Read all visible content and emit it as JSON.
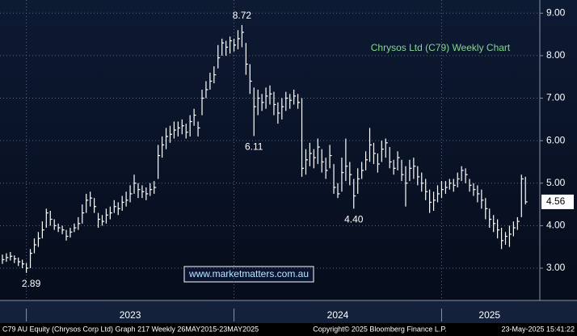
{
  "chart_data": {
    "type": "ohlc",
    "title": "Chrysos Ltd (C79) Weekly Chart",
    "watermark": "www.marketmatters.com.au",
    "footer_left": "C79 AU Equity (Chrysos Corp Ltd) Graph 217  Weekly 26MAY2015-23MAY2025",
    "footer_center": "Copyright© 2025 Bloomberg Finance L.P.",
    "footer_right": "23-May-2025 15:41:22",
    "color": "#ffffff",
    "grid": true,
    "xlim": [
      -0.6,
      134.6
    ],
    "ylim": [
      2.24,
      9.31
    ],
    "xdividers": [
      6,
      58,
      110
    ],
    "xticks": [
      {
        "value": 32,
        "label": "2023"
      },
      {
        "value": 84,
        "label": "2024"
      },
      {
        "value": 122,
        "label": "2025"
      }
    ],
    "yticks": [
      {
        "value": 3,
        "label": "3.00"
      },
      {
        "value": 4,
        "label": "4.00"
      },
      {
        "value": 5,
        "label": "5.00"
      },
      {
        "value": 6,
        "label": "6.00"
      },
      {
        "value": 7,
        "label": "7.00"
      },
      {
        "value": 8,
        "label": "8.00"
      },
      {
        "value": 9,
        "label": "9.00"
      }
    ],
    "annotations": [
      {
        "x": 60,
        "value": 8.72,
        "label": "8.72"
      },
      {
        "x": 63,
        "value": 6.11,
        "label": "6.11"
      },
      {
        "x": 88,
        "value": 4.4,
        "label": "4.40"
      },
      {
        "x": 6,
        "value": 2.89,
        "label": "2.89"
      }
    ],
    "high": [
      3.32,
      3.35,
      3.38,
      3.3,
      3.25,
      3.2,
      3.12,
      3.45,
      3.7,
      3.85,
      4.1,
      4.4,
      4.35,
      4.15,
      4.05,
      4.0,
      3.9,
      3.95,
      4.05,
      4.2,
      4.5,
      4.75,
      4.8,
      4.65,
      4.3,
      4.25,
      4.4,
      4.45,
      4.6,
      4.55,
      4.7,
      4.8,
      4.95,
      5.2,
      5.0,
      4.95,
      4.9,
      5.0,
      5.05,
      5.9,
      6.1,
      6.3,
      6.35,
      6.45,
      6.45,
      6.5,
      6.4,
      6.6,
      6.75,
      6.45,
      7.2,
      7.4,
      7.6,
      7.75,
      8.25,
      8.4,
      8.35,
      8.45,
      8.4,
      8.6,
      8.72,
      8.3,
      7.8,
      7.25,
      7.2,
      7.1,
      7.25,
      7.3,
      7.15,
      6.9,
      7.0,
      7.15,
      7.1,
      7.2,
      7.1,
      7.0,
      5.8,
      5.95,
      5.8,
      6.05,
      5.8,
      5.6,
      5.9,
      5.45,
      5.0,
      5.6,
      6.05,
      5.5,
      5.1,
      5.35,
      5.5,
      5.75,
      6.3,
      5.95,
      5.7,
      6.0,
      6.05,
      5.85,
      5.55,
      5.75,
      5.55,
      5.4,
      5.55,
      5.6,
      5.4,
      5.25,
      5.1,
      4.85,
      4.8,
      4.95,
      5.05,
      5.05,
      5.1,
      5.1,
      5.25,
      5.4,
      5.35,
      5.1,
      5.0,
      4.95,
      4.85,
      4.65,
      4.4,
      4.25,
      4.15,
      3.95,
      3.85,
      4.0,
      4.1,
      4.2,
      5.2,
      5.15
    ],
    "low": [
      3.1,
      3.15,
      3.18,
      3.12,
      3.05,
      3.0,
      2.89,
      3.0,
      3.35,
      3.5,
      3.7,
      3.95,
      4.0,
      3.9,
      3.85,
      3.8,
      3.65,
      3.72,
      3.85,
      3.9,
      4.05,
      4.3,
      4.45,
      4.3,
      3.95,
      4.0,
      4.05,
      4.15,
      4.3,
      4.25,
      4.35,
      4.45,
      4.55,
      4.75,
      4.65,
      4.65,
      4.6,
      4.7,
      4.75,
      5.1,
      5.6,
      5.8,
      5.95,
      6.05,
      6.1,
      6.15,
      6.05,
      6.1,
      6.35,
      6.1,
      6.6,
      7.0,
      7.2,
      7.35,
      7.7,
      8.0,
      8.0,
      8.05,
      8.1,
      8.15,
      8.2,
      7.55,
      7.1,
      6.11,
      6.6,
      6.7,
      6.75,
      6.85,
      6.6,
      6.4,
      6.5,
      6.7,
      6.75,
      6.85,
      6.75,
      5.15,
      5.2,
      5.4,
      5.35,
      5.45,
      5.25,
      5.1,
      5.35,
      4.75,
      4.65,
      4.8,
      5.05,
      4.95,
      4.4,
      4.75,
      5.1,
      5.3,
      5.5,
      5.45,
      5.25,
      5.5,
      5.6,
      5.35,
      5.2,
      5.3,
      5.05,
      4.45,
      5.05,
      5.1,
      4.95,
      4.8,
      4.6,
      4.3,
      4.35,
      4.55,
      4.65,
      4.75,
      4.85,
      4.8,
      4.9,
      5.05,
      5.0,
      4.8,
      4.7,
      4.55,
      4.4,
      4.15,
      3.95,
      3.85,
      3.7,
      3.45,
      3.55,
      3.5,
      3.75,
      3.9,
      4.2,
      4.5
    ],
    "close": [
      3.2,
      3.25,
      3.28,
      3.22,
      3.15,
      3.1,
      3.0,
      3.35,
      3.55,
      3.7,
      3.9,
      4.3,
      4.15,
      4.0,
      3.95,
      3.9,
      3.75,
      3.85,
      3.95,
      4.05,
      4.3,
      4.6,
      4.65,
      4.45,
      4.15,
      4.1,
      4.25,
      4.3,
      4.45,
      4.4,
      4.55,
      4.6,
      4.75,
      5.0,
      4.85,
      4.8,
      4.75,
      4.85,
      4.9,
      5.65,
      5.9,
      6.1,
      6.15,
      6.25,
      6.3,
      6.35,
      6.2,
      6.45,
      6.6,
      6.3,
      7.0,
      7.2,
      7.4,
      7.55,
      7.95,
      8.3,
      8.2,
      8.35,
      8.25,
      8.4,
      8.55,
      7.8,
      7.4,
      6.8,
      7.0,
      6.9,
      7.05,
      7.1,
      6.85,
      6.65,
      6.8,
      7.0,
      6.95,
      7.05,
      6.9,
      5.35,
      5.55,
      5.7,
      5.6,
      5.85,
      5.5,
      5.3,
      5.65,
      4.9,
      4.75,
      5.25,
      5.4,
      5.2,
      4.7,
      5.1,
      5.3,
      5.55,
      5.9,
      5.7,
      5.45,
      5.8,
      5.95,
      5.5,
      5.35,
      5.6,
      5.2,
      5.0,
      5.35,
      5.4,
      5.15,
      5.0,
      4.8,
      4.55,
      4.6,
      4.75,
      4.85,
      4.9,
      5.0,
      4.95,
      5.1,
      5.3,
      5.2,
      4.95,
      4.85,
      4.75,
      4.6,
      4.4,
      4.15,
      4.05,
      3.9,
      3.65,
      3.75,
      3.8,
      3.95,
      4.1,
      5.1,
      4.56
    ]
  }
}
